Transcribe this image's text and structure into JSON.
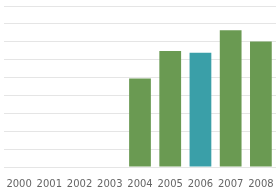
{
  "chart_data": {
    "type": "bar",
    "categories": [
      "2000",
      "2001",
      "2002",
      "2003",
      "2004",
      "2005",
      "2006",
      "2007",
      "2008"
    ],
    "values": [
      0,
      0,
      0,
      0,
      55,
      72,
      71,
      85,
      78
    ],
    "colors": [
      "#6a9a52",
      "#6a9a52",
      "#6a9a52",
      "#6a9a52",
      "#6a9a52",
      "#6a9a52",
      "#3a9fa8",
      "#6a9a52",
      "#6a9a52"
    ],
    "ylim": [
      0,
      100
    ],
    "yticks": [
      0,
      11.11111111111111,
      22.22222222222222,
      33.333333333333336,
      44.44444444444444,
      55.55555555555556,
      66.66666666666667,
      77.77777777777777,
      88.88888888888889,
      100
    ],
    "grid": true,
    "tick_labels": "x"
  }
}
